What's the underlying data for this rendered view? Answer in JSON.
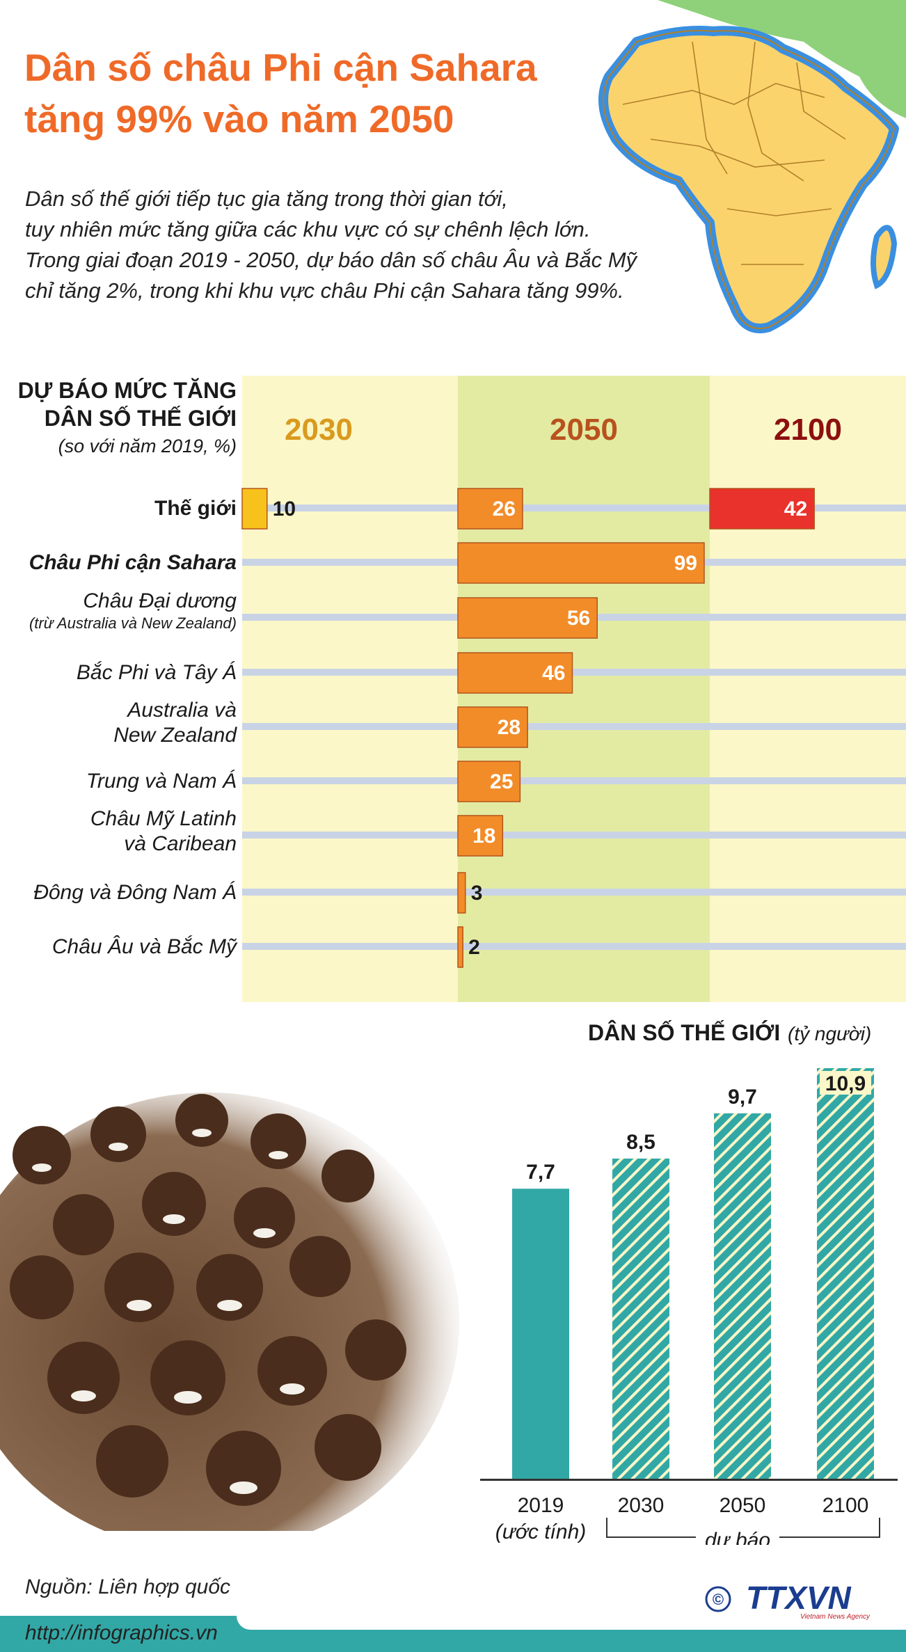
{
  "title": {
    "line1": "Dân số châu Phi cận Sahara",
    "line2": "tăng 99% vào năm 2050"
  },
  "intro": [
    "Dân số thế giới tiếp tục gia tăng trong thời gian tới,",
    "tuy nhiên mức tăng giữa các khu vực có sự chênh lệch lớn.",
    "Trong giai đoạn 2019 - 2050, dự báo dân số châu Âu và Bắc Mỹ",
    "chỉ tăng 2%, trong khi khu vực châu Phi cận Sahara tăng 99%."
  ],
  "colors": {
    "title": "#ef6a28",
    "bar2030": "#f7c21c",
    "bar2050": "#f28c28",
    "bar2100": "#e8322b",
    "teal": "#32a8a6",
    "panel_light": "#fbf7c8",
    "panel_green": "#e3eba3",
    "year2030": "#d99a1e",
    "year2050": "#b8521d",
    "year2100": "#8c1010"
  },
  "chart_data": [
    {
      "type": "bar",
      "title": [
        "DỰ BÁO MỨC TĂNG",
        "DÂN SỐ THẾ GIỚI"
      ],
      "subtitle": "(so với năm 2019, %)",
      "columns": [
        "2030",
        "2050",
        "2100"
      ],
      "rows": [
        {
          "label": "Thế giới",
          "sublabel": "",
          "values": {
            "2030": 10,
            "2050": 26,
            "2100": 42
          }
        },
        {
          "label": "Châu Phi cận Sahara",
          "sublabel": "",
          "values": {
            "2050": 99
          }
        },
        {
          "label": "Châu Đại dương",
          "sublabel": "(trừ Australia và New Zealand)",
          "values": {
            "2050": 56
          }
        },
        {
          "label": "Bắc Phi và Tây Á",
          "sublabel": "",
          "values": {
            "2050": 46
          }
        },
        {
          "label": "Australia và",
          "sublabel": "New Zealand",
          "values": {
            "2050": 28
          }
        },
        {
          "label": "Trung và Nam Á",
          "sublabel": "",
          "values": {
            "2050": 25
          }
        },
        {
          "label": "Châu Mỹ Latinh",
          "sublabel": "và Caribean",
          "values": {
            "2050": 18
          }
        },
        {
          "label": "Đông và Đông Nam Á",
          "sublabel": "",
          "values": {
            "2050": 3
          }
        },
        {
          "label": "Châu Âu và Bắc Mỹ",
          "sublabel": "",
          "values": {
            "2050": 2
          }
        }
      ]
    },
    {
      "type": "bar",
      "title": "DÂN SỐ THẾ GIỚI",
      "unit": "(tỷ người)",
      "categories": [
        "2019",
        "2030",
        "2050",
        "2100"
      ],
      "category_notes": [
        "(ước tính)",
        "",
        "",
        ""
      ],
      "values": [
        7.7,
        8.5,
        9.7,
        10.9
      ],
      "value_labels": [
        "7,7",
        "8,5",
        "9,7",
        "10,9"
      ],
      "forecast_label": "dự báo"
    }
  ],
  "source": "Nguồn: Liên hợp quốc",
  "footer_url": "http://infographics.vn",
  "logo": {
    "text": "TTXVN",
    "sub": "Vietnam News Agency",
    "copyright": "©"
  }
}
